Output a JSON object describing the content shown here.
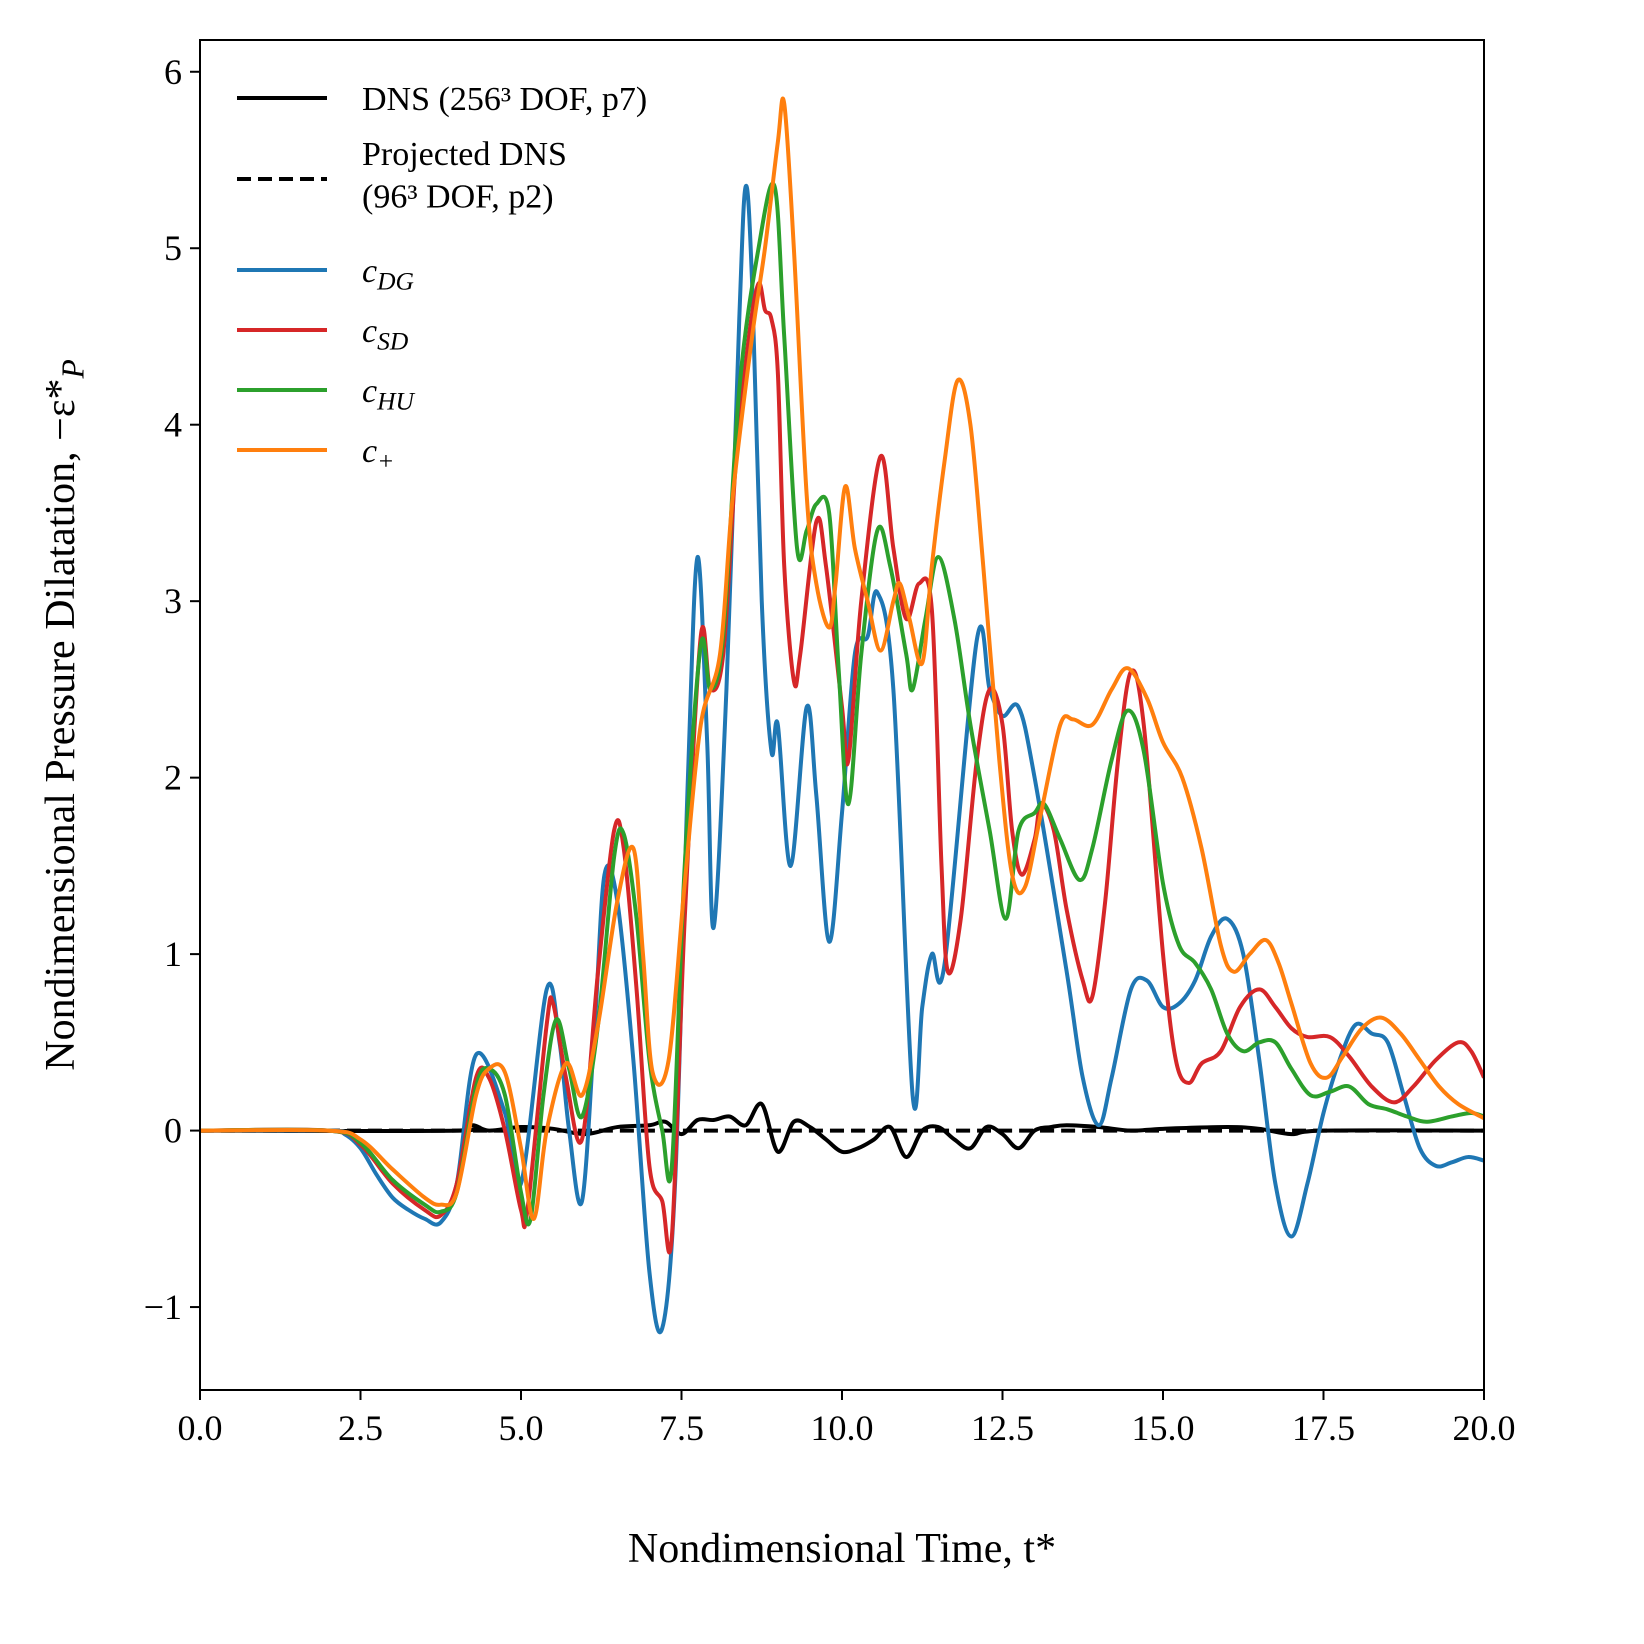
{
  "chart_data": {
    "type": "line",
    "xlabel": "Nondimensional Time, t*",
    "ylabel": "Nondimensional Pressure Dilatation, −ε*_P",
    "xlim": [
      0,
      20
    ],
    "ylim": [
      -1.47,
      6.18
    ],
    "xticks": [
      {
        "value": 0,
        "label": "0.0"
      },
      2.5,
      {
        "value": 5,
        "label": "5.0"
      },
      7.5,
      {
        "value": 10,
        "label": "10.0"
      },
      12.5,
      {
        "value": 15,
        "label": "15.0"
      },
      17.5,
      {
        "value": 20,
        "label": "20.0"
      }
    ],
    "yticks": [
      {
        "value": -1,
        "label": "−1"
      },
      0,
      1,
      2,
      3,
      4,
      5,
      6
    ],
    "legend": "upper left",
    "series": [
      {
        "name": "DNS (256³ DOF, p7)",
        "color": "#000000",
        "linestyle": "solid",
        "x": [
          0,
          4,
          4.25,
          4.5,
          5,
          5.5,
          6,
          6.5,
          7,
          7.25,
          7.5,
          7.75,
          8,
          8.25,
          8.5,
          8.75,
          9,
          9.25,
          9.5,
          9.75,
          10,
          10.25,
          10.5,
          10.75,
          11,
          11.25,
          11.5,
          11.75,
          12,
          12.25,
          12.5,
          12.75,
          13,
          13.25,
          13.5,
          14,
          14.5,
          15,
          16,
          16.5,
          17,
          17.5,
          20
        ],
        "values": [
          0,
          0,
          0.03,
          0,
          0.02,
          0.01,
          -0.02,
          0.02,
          0.03,
          0.05,
          -0.02,
          0.06,
          0.06,
          0.08,
          0.03,
          0.15,
          -0.12,
          0.05,
          0.02,
          -0.05,
          -0.12,
          -0.1,
          -0.05,
          0.02,
          -0.15,
          0,
          0.02,
          -0.05,
          -0.1,
          0.02,
          -0.02,
          -0.1,
          0,
          0.02,
          0.03,
          0.02,
          0,
          0.01,
          0.02,
          0.01,
          -0.02,
          0,
          0
        ]
      },
      {
        "name": "Projected DNS\n(96³ DOF, p2)",
        "color": "#000000",
        "linestyle": "dashed",
        "x": [
          0,
          20
        ],
        "values": [
          0,
          0
        ]
      },
      {
        "name": "c_DG",
        "color": "#1f77b4",
        "linestyle": "solid",
        "x": [
          0,
          2,
          2.25,
          2.5,
          2.75,
          3,
          3.25,
          3.5,
          3.75,
          4,
          4.3,
          4.75,
          5,
          5.4,
          5.6,
          5.75,
          5.95,
          6.15,
          6.3,
          6.5,
          6.75,
          7,
          7.2,
          7.4,
          7.6,
          7.75,
          7.9,
          8,
          8.2,
          8.4,
          8.5,
          8.6,
          8.75,
          8.9,
          9,
          9.2,
          9.45,
          9.6,
          9.8,
          10,
          10.2,
          10.4,
          10.55,
          10.8,
          11.1,
          11.25,
          11.4,
          11.6,
          12.1,
          12.3,
          12.5,
          12.75,
          13,
          13.5,
          13.75,
          14,
          14.2,
          14.5,
          14.75,
          15,
          15.25,
          15.5,
          15.75,
          16,
          16.25,
          16.5,
          16.75,
          17,
          17.25,
          17.5,
          17.75,
          18,
          18.25,
          18.5,
          18.75,
          19,
          19.25,
          19.5,
          19.75,
          20
        ],
        "values": [
          0,
          0,
          -0.02,
          -0.1,
          -0.25,
          -0.38,
          -0.45,
          -0.5,
          -0.52,
          -0.3,
          0.43,
          0.1,
          -0.3,
          0.8,
          0.5,
          0,
          -0.4,
          0.6,
          1.45,
          1.3,
          0.4,
          -0.8,
          -1.12,
          -0.3,
          2,
          3.25,
          2.2,
          1.15,
          2.5,
          4.6,
          5.35,
          4.8,
          3,
          2.15,
          2.3,
          1.5,
          2.4,
          1.9,
          1.07,
          1.8,
          2.7,
          2.8,
          3.05,
          2.5,
          0.2,
          0.7,
          1,
          0.95,
          2.78,
          2.5,
          2.35,
          2.4,
          2,
          0.9,
          0.3,
          0.03,
          0.3,
          0.8,
          0.85,
          0.7,
          0.72,
          0.85,
          1.1,
          1.2,
          1,
          0.4,
          -0.3,
          -0.6,
          -0.3,
          0.1,
          0.4,
          0.6,
          0.55,
          0.5,
          0.2,
          -0.1,
          -0.2,
          -0.18,
          -0.15,
          -0.17
        ]
      },
      {
        "name": "c_SD",
        "color": "#d62728",
        "linestyle": "solid",
        "x": [
          0,
          2,
          2.5,
          3,
          3.5,
          3.75,
          4,
          4.3,
          4.5,
          4.75,
          5,
          5.1,
          5.4,
          5.5,
          5.7,
          5.95,
          6.2,
          6.45,
          6.6,
          6.8,
          7,
          7.2,
          7.35,
          7.55,
          7.8,
          7.95,
          8.15,
          8.35,
          8.55,
          8.7,
          8.8,
          8.9,
          9,
          9.1,
          9.25,
          9.35,
          9.6,
          9.75,
          10,
          10.1,
          10.3,
          10.6,
          10.8,
          11,
          11.2,
          11.4,
          11.55,
          11.65,
          11.85,
          12.1,
          12.3,
          12.5,
          12.65,
          12.8,
          13,
          13.1,
          13.3,
          13.5,
          13.75,
          13.9,
          14.1,
          14.3,
          14.5,
          14.7,
          15,
          15.2,
          15.4,
          15.6,
          15.9,
          16.2,
          16.5,
          16.75,
          17,
          17.25,
          17.6,
          17.9,
          18.25,
          18.6,
          18.9,
          19.25,
          19.6,
          19.8,
          20
        ],
        "values": [
          0,
          0,
          -0.08,
          -0.3,
          -0.45,
          -0.48,
          -0.3,
          0.3,
          0.3,
          0,
          -0.45,
          -0.45,
          0.6,
          0.72,
          0.3,
          -0.05,
          0.9,
          1.7,
          1.6,
          0.8,
          -0.2,
          -0.4,
          -0.6,
          1.2,
          2.8,
          2.5,
          2.7,
          3.8,
          4.5,
          4.8,
          4.65,
          4.6,
          4.3,
          3.2,
          2.55,
          2.7,
          3.45,
          3.2,
          2.4,
          2.1,
          3,
          3.82,
          3.3,
          2.9,
          3.1,
          2.95,
          1.5,
          0.9,
          1.2,
          2.1,
          2.5,
          2.3,
          1.7,
          1.45,
          1.65,
          1.85,
          1.7,
          1.25,
          0.85,
          0.76,
          1.3,
          2.1,
          2.6,
          2.3,
          1,
          0.4,
          0.27,
          0.38,
          0.45,
          0.7,
          0.8,
          0.7,
          0.58,
          0.53,
          0.53,
          0.42,
          0.25,
          0.16,
          0.25,
          0.4,
          0.5,
          0.45,
          0.3
        ]
      },
      {
        "name": "c_HU",
        "color": "#2ca02c",
        "linestyle": "solid",
        "x": [
          0,
          2,
          2.5,
          3,
          3.5,
          3.75,
          4,
          4.3,
          4.5,
          4.75,
          5,
          5.15,
          5.35,
          5.55,
          5.75,
          5.95,
          6.2,
          6.45,
          6.6,
          6.8,
          7,
          7.2,
          7.35,
          7.55,
          7.8,
          7.95,
          8.15,
          8.4,
          8.7,
          8.95,
          9.1,
          9.3,
          9.45,
          9.6,
          9.8,
          9.95,
          10.1,
          10.3,
          10.55,
          10.75,
          11,
          11.1,
          11.3,
          11.5,
          11.75,
          12,
          12.3,
          12.55,
          12.75,
          13,
          13.15,
          13.4,
          13.7,
          13.9,
          14.2,
          14.45,
          14.7,
          15,
          15.25,
          15.5,
          15.75,
          16,
          16.25,
          16.5,
          16.75,
          17,
          17.3,
          17.6,
          17.9,
          18.2,
          18.5,
          18.8,
          19.1,
          19.5,
          19.8,
          20
        ],
        "values": [
          0,
          0,
          -0.07,
          -0.28,
          -0.42,
          -0.46,
          -0.35,
          0.25,
          0.35,
          0.2,
          -0.35,
          -0.5,
          0.2,
          0.63,
          0.35,
          0.08,
          0.6,
          1.55,
          1.68,
          1.2,
          0.4,
          0,
          -0.2,
          1.5,
          2.75,
          2.5,
          2.8,
          4.2,
          5,
          5.35,
          4.5,
          3.3,
          3.4,
          3.55,
          3.5,
          2.6,
          1.85,
          2.7,
          3.4,
          3.2,
          2.7,
          2.5,
          2.9,
          3.25,
          2.9,
          2.3,
          1.7,
          1.2,
          1.7,
          1.8,
          1.85,
          1.65,
          1.42,
          1.6,
          2.1,
          2.38,
          2.15,
          1.4,
          1.05,
          0.95,
          0.8,
          0.55,
          0.45,
          0.5,
          0.5,
          0.35,
          0.2,
          0.22,
          0.25,
          0.15,
          0.12,
          0.08,
          0.05,
          0.08,
          0.1,
          0.08
        ]
      },
      {
        "name": "c_+",
        "color": "#ff7f0e",
        "linestyle": "solid",
        "x": [
          0,
          2,
          2.5,
          3,
          3.5,
          3.75,
          4,
          4.3,
          4.5,
          4.75,
          5,
          5.2,
          5.4,
          5.7,
          5.95,
          6.2,
          6.5,
          6.75,
          6.9,
          7.05,
          7.3,
          7.55,
          7.8,
          8.1,
          8.3,
          8.6,
          8.8,
          9,
          9.1,
          9.25,
          9.45,
          9.6,
          9.8,
          9.9,
          10.05,
          10.2,
          10.4,
          10.6,
          10.8,
          10.9,
          11.05,
          11.25,
          11.4,
          11.6,
          11.8,
          12,
          12.2,
          12.45,
          12.65,
          12.85,
          13.1,
          13.4,
          13.6,
          13.9,
          14.2,
          14.45,
          14.75,
          15,
          15.3,
          15.6,
          15.9,
          16.1,
          16.35,
          16.6,
          16.8,
          17,
          17.3,
          17.55,
          17.8,
          18.1,
          18.4,
          18.7,
          19,
          19.3,
          19.6,
          20
        ],
        "values": [
          0,
          0,
          -0.05,
          -0.22,
          -0.38,
          -0.42,
          -0.35,
          0.2,
          0.35,
          0.33,
          -0.1,
          -0.5,
          0,
          0.38,
          0.2,
          0.6,
          1.3,
          1.6,
          1,
          0.33,
          0.4,
          1.4,
          2.3,
          2.7,
          3.6,
          4.5,
          5,
          5.6,
          5.82,
          5,
          3.6,
          3.1,
          2.85,
          3.1,
          3.65,
          3.3,
          3,
          2.72,
          3,
          3.1,
          2.9,
          2.65,
          3.2,
          3.8,
          4.25,
          4,
          3.2,
          2.1,
          1.45,
          1.38,
          1.8,
          2.3,
          2.33,
          2.3,
          2.5,
          2.62,
          2.45,
          2.2,
          2,
          1.6,
          1.05,
          0.9,
          1,
          1.08,
          0.95,
          0.72,
          0.38,
          0.3,
          0.42,
          0.58,
          0.64,
          0.55,
          0.4,
          0.25,
          0.15,
          0.07
        ]
      }
    ]
  }
}
